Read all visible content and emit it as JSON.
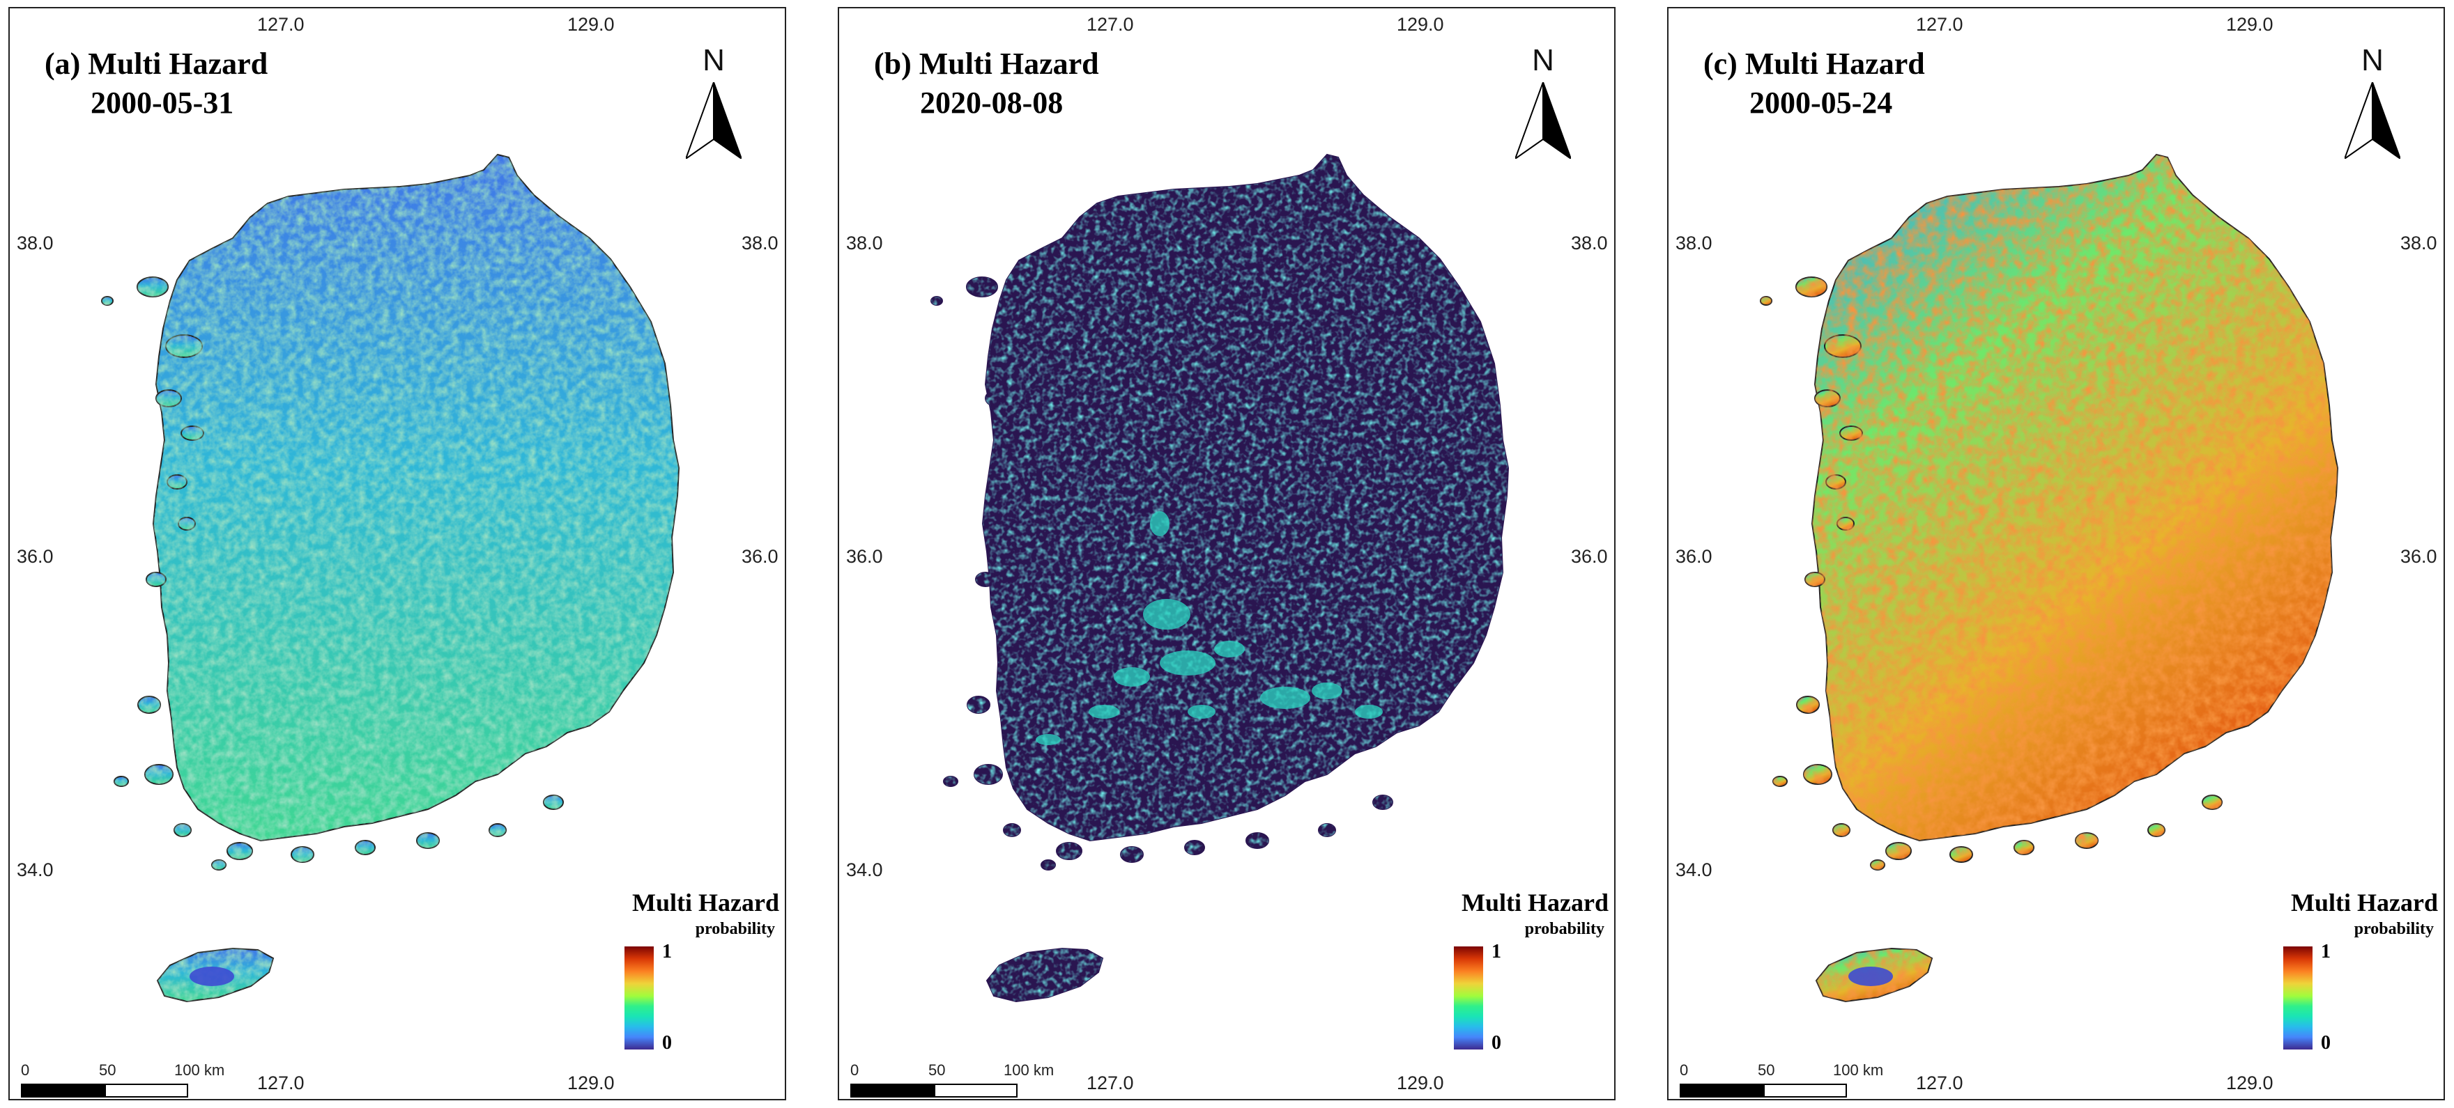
{
  "figure": "Multi Hazard probability maps",
  "colors": {
    "low": "#3e2a8f",
    "blue": "#4686fb",
    "cyan": "#28bceb",
    "green": "#30f08a",
    "yellow": "#efd33a",
    "orange": "#fb8022",
    "high": "#7a0403",
    "background_dark": "#2a1550"
  },
  "panels": [
    {
      "label": "(a) Multi Hazard",
      "date": "2000-05-31",
      "scheme": "blue-green",
      "north_label": "N",
      "top_ticks": [
        "127.0",
        "129.0"
      ],
      "bottom_ticks": [
        "127.0",
        "129.0"
      ],
      "left_ticks": [
        "38.0",
        "36.0",
        "34.0"
      ],
      "right_ticks": [
        "38.0",
        "36.0"
      ],
      "legend": {
        "title": "Multi Hazard",
        "subtitle": "probability",
        "max": "1",
        "min": "0"
      },
      "scalebar": {
        "zero": "0",
        "mid": "50",
        "end": "100 km"
      }
    },
    {
      "label": "(b) Multi Hazard",
      "date": "2020-08-08",
      "scheme": "dark",
      "north_label": "N",
      "top_ticks": [
        "127.0",
        "129.0"
      ],
      "bottom_ticks": [
        "127.0",
        "129.0"
      ],
      "left_ticks": [
        "38.0",
        "36.0",
        "34.0"
      ],
      "right_ticks": [
        "38.0",
        "36.0"
      ],
      "legend": {
        "title": "Multi Hazard",
        "subtitle": "probability",
        "max": "1",
        "min": "0"
      },
      "scalebar": {
        "zero": "0",
        "mid": "50",
        "end": "100 km"
      }
    },
    {
      "label": "(c) Multi Hazard",
      "date": "2000-05-24",
      "scheme": "warm",
      "north_label": "N",
      "top_ticks": [
        "127.0",
        "129.0"
      ],
      "bottom_ticks": [
        "127.0",
        "129.0"
      ],
      "left_ticks": [
        "38.0",
        "36.0",
        "34.0"
      ],
      "right_ticks": [
        "38.0",
        "36.0"
      ],
      "legend": {
        "title": "Multi Hazard",
        "subtitle": "probability",
        "max": "1",
        "min": "0"
      },
      "scalebar": {
        "zero": "0",
        "mid": "50",
        "end": "100 km"
      }
    }
  ]
}
